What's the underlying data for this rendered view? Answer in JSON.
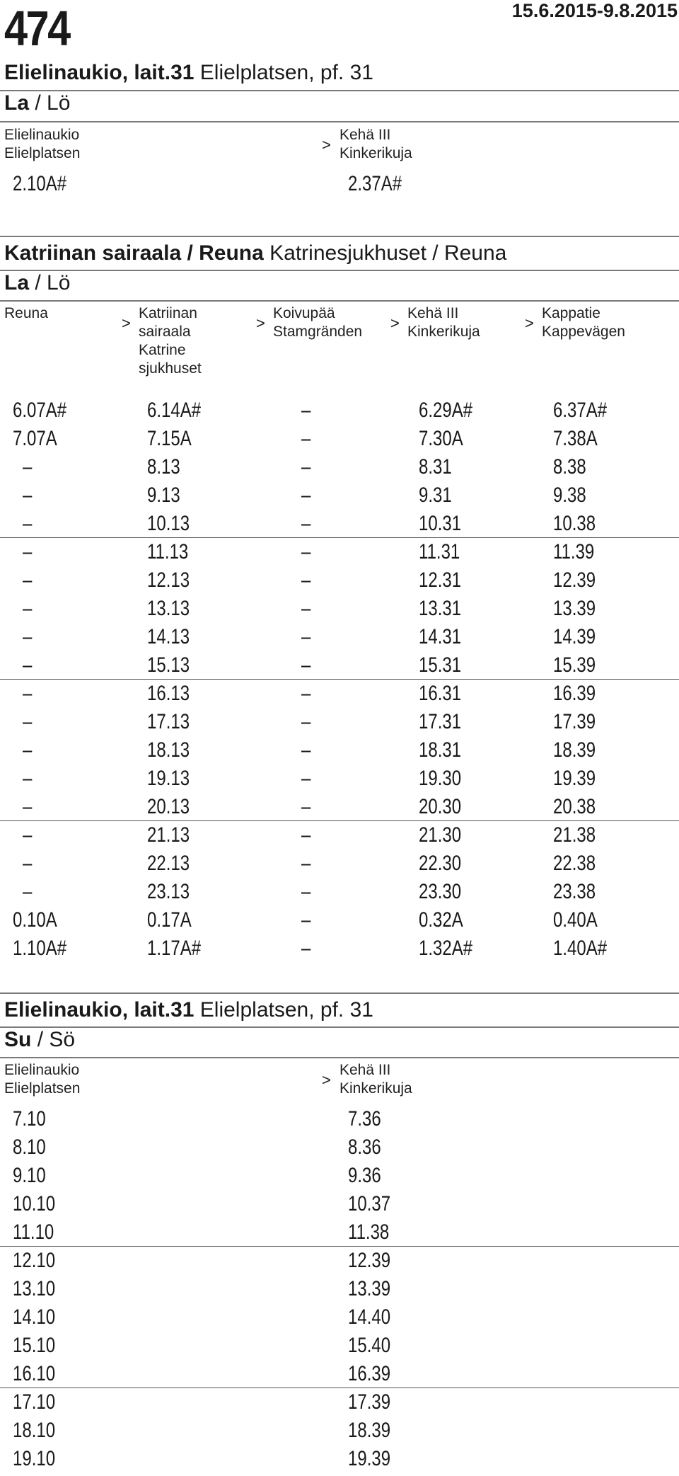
{
  "header": {
    "route_number": "474",
    "valid_dates": "15.6.2015-9.8.2015"
  },
  "sections": [
    {
      "title_bold": "Elielinaukio, lait.31",
      "title_regular": "Elielplatsen, pf. 31",
      "day_bold": "La",
      "day_regular": "/ Lö",
      "stops": [
        "Elielinaukio\nElielplatsen",
        "Kehä III\nKinkerikuja"
      ],
      "arrow": ">",
      "rows": [
        [
          "2.10A#",
          "2.37A#"
        ]
      ]
    },
    {
      "title_bold": "Katriinan sairaala / Reuna",
      "title_regular": "Katrinesjukhuset / Reuna",
      "day_bold": "La",
      "day_regular": "/ Lö",
      "stops": [
        "Reuna",
        "Katriinan\nsairaala\nKatrine\nsjukhuset",
        "Koivupää\nStamgränden",
        "Kehä III\nKinkerikuja",
        "Kappatie\nKappevägen"
      ],
      "arrow": ">",
      "rows": [
        [
          "6.07A#",
          "6.14A#",
          "–",
          "6.29A#",
          "6.37A#"
        ],
        [
          "7.07A",
          "7.15A",
          "–",
          "7.30A",
          "7.38A"
        ],
        [
          "–",
          "8.13",
          "–",
          "8.31",
          "8.38"
        ],
        [
          "–",
          "9.13",
          "–",
          "9.31",
          "9.38"
        ],
        [
          "–",
          "10.13",
          "–",
          "10.31",
          "10.38"
        ],
        [
          "–",
          "11.13",
          "–",
          "11.31",
          "11.39"
        ],
        [
          "–",
          "12.13",
          "–",
          "12.31",
          "12.39"
        ],
        [
          "–",
          "13.13",
          "–",
          "13.31",
          "13.39"
        ],
        [
          "–",
          "14.13",
          "–",
          "14.31",
          "14.39"
        ],
        [
          "–",
          "15.13",
          "–",
          "15.31",
          "15.39"
        ],
        [
          "–",
          "16.13",
          "–",
          "16.31",
          "16.39"
        ],
        [
          "–",
          "17.13",
          "–",
          "17.31",
          "17.39"
        ],
        [
          "–",
          "18.13",
          "–",
          "18.31",
          "18.39"
        ],
        [
          "–",
          "19.13",
          "–",
          "19.30",
          "19.39"
        ],
        [
          "–",
          "20.13",
          "–",
          "20.30",
          "20.38"
        ],
        [
          "–",
          "21.13",
          "–",
          "21.30",
          "21.38"
        ],
        [
          "–",
          "22.13",
          "–",
          "22.30",
          "22.38"
        ],
        [
          "–",
          "23.13",
          "–",
          "23.30",
          "23.38"
        ],
        [
          "0.10A",
          "0.17A",
          "–",
          "0.32A",
          "0.40A"
        ],
        [
          "1.10A#",
          "1.17A#",
          "–",
          "1.32A#",
          "1.40A#"
        ]
      ]
    },
    {
      "title_bold": "Elielinaukio, lait.31",
      "title_regular": "Elielplatsen, pf. 31",
      "day_bold": "Su",
      "day_regular": "/ Sö",
      "stops": [
        "Elielinaukio\nElielplatsen",
        "Kehä III\nKinkerikuja"
      ],
      "arrow": ">",
      "rows": [
        [
          "7.10",
          "7.36"
        ],
        [
          "8.10",
          "8.36"
        ],
        [
          "9.10",
          "9.36"
        ],
        [
          "10.10",
          "10.37"
        ],
        [
          "11.10",
          "11.38"
        ],
        [
          "12.10",
          "12.39"
        ],
        [
          "13.10",
          "13.39"
        ],
        [
          "14.10",
          "14.40"
        ],
        [
          "15.10",
          "15.40"
        ],
        [
          "16.10",
          "16.39"
        ],
        [
          "17.10",
          "17.39"
        ],
        [
          "18.10",
          "18.39"
        ],
        [
          "19.10",
          "19.39"
        ]
      ]
    }
  ]
}
